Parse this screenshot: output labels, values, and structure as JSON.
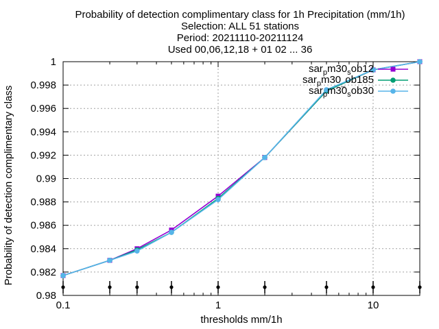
{
  "chart_data": {
    "type": "line",
    "title_lines": [
      "Probability of detection complimentary class  for 1h Precipitation (mm/1h)",
      "Selection: ALL     51 stations",
      "Period: 20211110-20211124",
      "Used 00,06,12,18 + 01 02 ... 36"
    ],
    "xlabel": "thresholds mm/1h",
    "ylabel": "Probability of detection complimentary class",
    "xscale": "log",
    "xlim": [
      0.1,
      20
    ],
    "ylim": [
      0.98,
      1.0
    ],
    "x_ticks": [
      0.1,
      1,
      10
    ],
    "x_tick_labels": [
      "0.1",
      "1",
      "10"
    ],
    "y_ticks": [
      0.98,
      0.982,
      0.984,
      0.986,
      0.988,
      0.99,
      0.992,
      0.994,
      0.996,
      0.998,
      1.0
    ],
    "y_tick_labels": [
      "0.98",
      "0.982",
      "0.984",
      "0.986",
      "0.988",
      "0.99",
      "0.992",
      "0.994",
      "0.996",
      "0.998",
      "1"
    ],
    "grid": true,
    "legend_position": "top-right",
    "x": [
      0.1,
      0.2,
      0.3,
      0.5,
      1,
      2,
      5,
      10,
      20
    ],
    "series": [
      {
        "name_base": "sar",
        "name_sub1": "p",
        "name_mid": "m30",
        "name_sub2": "s",
        "name_tail": "ob12",
        "color": "#9400d3",
        "marker": "square",
        "values": [
          0.9817,
          0.983,
          0.984,
          0.9856,
          0.9885,
          0.9918,
          0.9975,
          0.9993,
          1.0
        ]
      },
      {
        "name_base": "sar",
        "name_sub1": "p",
        "name_mid": "m30",
        "name_sub2": "_",
        "name_tail": "ob185",
        "color": "#009e73",
        "marker": "circle",
        "values": [
          0.9817,
          0.983,
          0.9839,
          0.9854,
          0.9883,
          0.9918,
          0.9975,
          0.9993,
          1.0
        ]
      },
      {
        "name_base": "sar",
        "name_sub1": "p",
        "name_mid": "m30",
        "name_sub2": "s",
        "name_tail": "ob30",
        "color": "#56b4e9",
        "marker": "circle",
        "values": [
          0.9817,
          0.983,
          0.9838,
          0.9854,
          0.9882,
          0.9918,
          0.9976,
          0.9993,
          1.0
        ]
      }
    ],
    "observation_markers": {
      "symbol": "dot-with-tick",
      "color": "#000000",
      "x": [
        0.1,
        0.2,
        0.3,
        0.5,
        1,
        2,
        5,
        10,
        20
      ]
    }
  }
}
